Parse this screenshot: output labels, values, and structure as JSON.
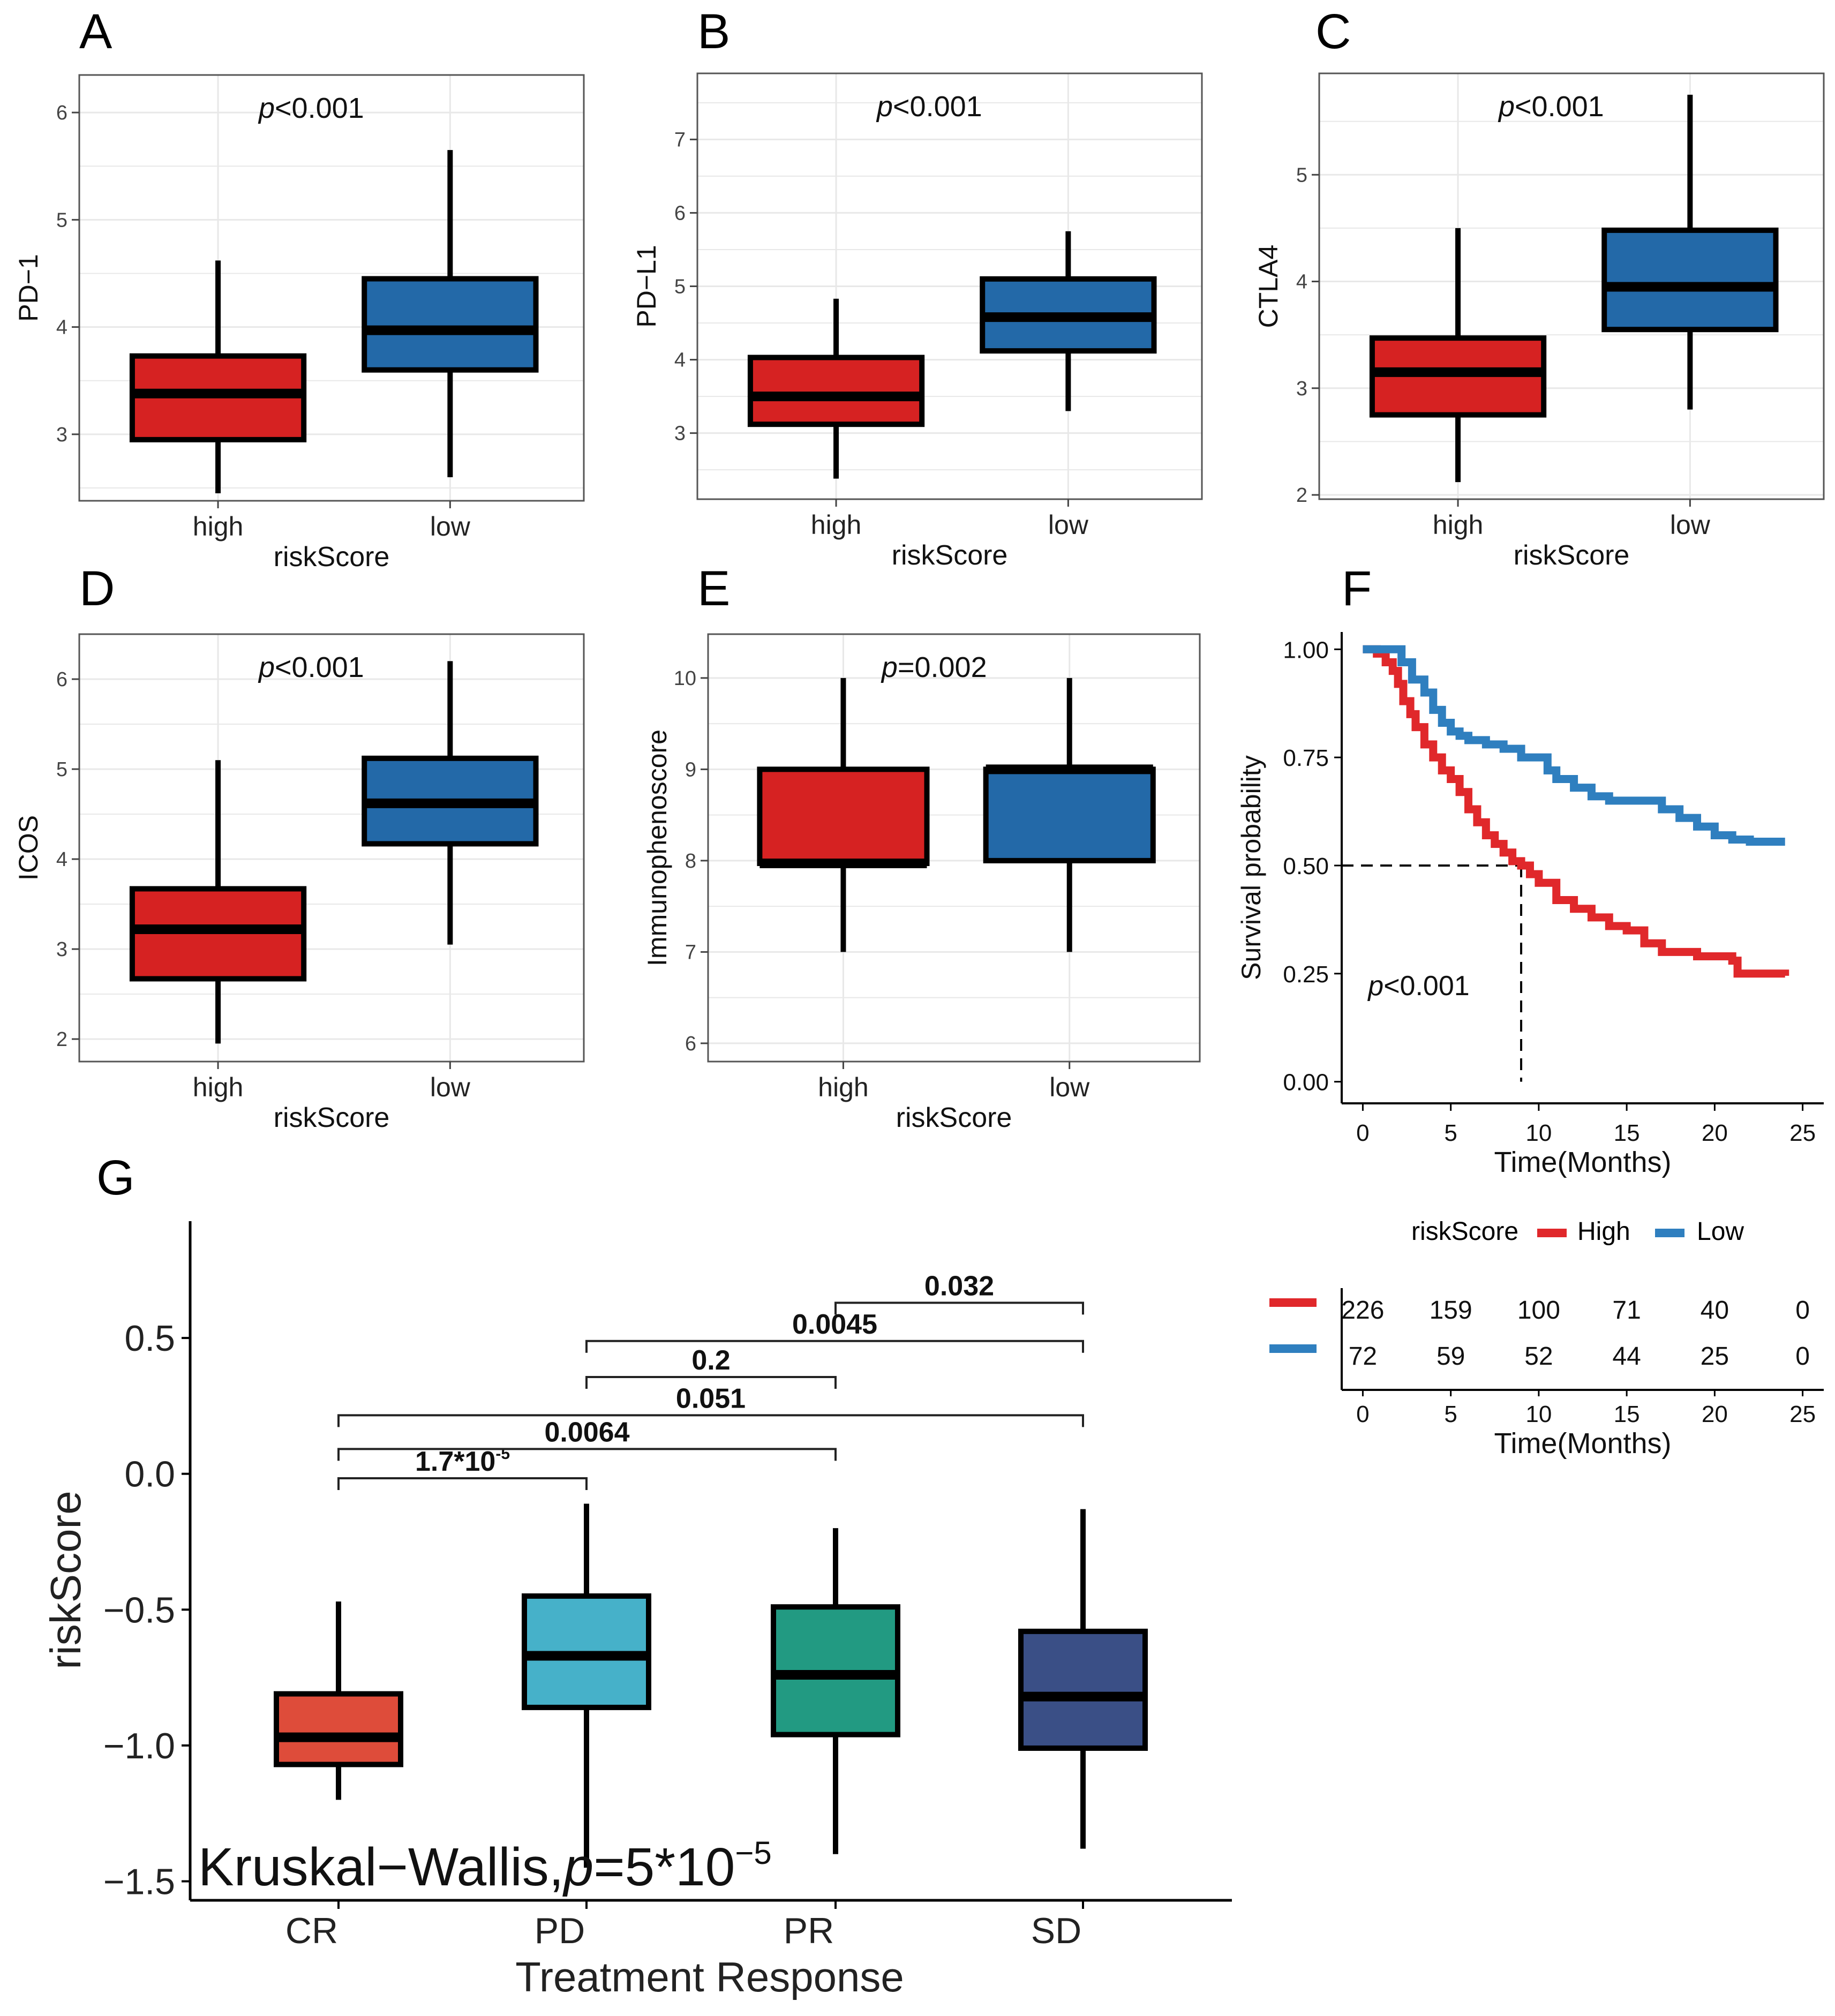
{
  "figure": {
    "panel_labels": [
      "A",
      "B",
      "C",
      "D",
      "E",
      "F",
      "G"
    ]
  },
  "colors": {
    "high": "#d62222",
    "low": "#2369a8",
    "km_high": "#e0282b",
    "km_low": "#2f7fbf",
    "CR": "#de4c3a",
    "PD": "#46b1c9",
    "PR": "#229a82",
    "SD": "#3a4f86"
  },
  "chart_data": [
    {
      "panel": "A",
      "type": "box",
      "title": "",
      "xlabel": "riskScore",
      "ylabel": "PD−1",
      "pvalue": {
        "prefix": "p",
        "text": "<0.001"
      },
      "ylim": [
        2.38,
        6.35
      ],
      "yticks": [
        3,
        4,
        5,
        6
      ],
      "categories": [
        "high",
        "low"
      ],
      "boxes": [
        {
          "group": "high",
          "min": 2.45,
          "q1": 2.95,
          "median": 3.38,
          "q3": 3.73,
          "max": 4.62
        },
        {
          "group": "low",
          "min": 2.6,
          "q1": 3.6,
          "median": 3.97,
          "q3": 4.45,
          "max": 5.65
        }
      ]
    },
    {
      "panel": "B",
      "type": "box",
      "title": "",
      "xlabel": "riskScore",
      "ylabel": "PD−L1",
      "pvalue": {
        "prefix": "p",
        "text": "<0.001"
      },
      "ylim": [
        2.1,
        7.9
      ],
      "yticks": [
        3,
        4,
        5,
        6,
        7
      ],
      "categories": [
        "high",
        "low"
      ],
      "boxes": [
        {
          "group": "high",
          "min": 2.38,
          "q1": 3.12,
          "median": 3.5,
          "q3": 4.03,
          "max": 4.83
        },
        {
          "group": "low",
          "min": 3.3,
          "q1": 4.12,
          "median": 4.58,
          "q3": 5.1,
          "max": 5.75
        }
      ]
    },
    {
      "panel": "C",
      "type": "box",
      "title": "",
      "xlabel": "riskScore",
      "ylabel": "CTLA4",
      "pvalue": {
        "prefix": "p",
        "text": "<0.001"
      },
      "ylim": [
        1.96,
        5.95
      ],
      "yticks": [
        2,
        3,
        4,
        5
      ],
      "categories": [
        "high",
        "low"
      ],
      "boxes": [
        {
          "group": "high",
          "min": 2.12,
          "q1": 2.75,
          "median": 3.15,
          "q3": 3.47,
          "max": 4.5
        },
        {
          "group": "low",
          "min": 2.8,
          "q1": 3.55,
          "median": 3.95,
          "q3": 4.48,
          "max": 5.75
        }
      ]
    },
    {
      "panel": "D",
      "type": "box",
      "title": "",
      "xlabel": "riskScore",
      "ylabel": "ICOS",
      "pvalue": {
        "prefix": "p",
        "text": "<0.001"
      },
      "ylim": [
        1.75,
        6.5
      ],
      "yticks": [
        2,
        3,
        4,
        5,
        6
      ],
      "categories": [
        "high",
        "low"
      ],
      "boxes": [
        {
          "group": "high",
          "min": 1.95,
          "q1": 2.67,
          "median": 3.22,
          "q3": 3.67,
          "max": 5.1
        },
        {
          "group": "low",
          "min": 3.05,
          "q1": 4.17,
          "median": 4.62,
          "q3": 5.12,
          "max": 6.2
        }
      ]
    },
    {
      "panel": "E",
      "type": "box",
      "title": "",
      "xlabel": "riskScore",
      "ylabel": "Immunophenoscore",
      "pvalue": {
        "prefix": "p",
        "text": "=0.002"
      },
      "ylim": [
        5.8,
        10.48
      ],
      "yticks": [
        6,
        7,
        8,
        9,
        10
      ],
      "categories": [
        "high",
        "low"
      ],
      "boxes": [
        {
          "group": "high",
          "min": 7.0,
          "q1": 7.97,
          "median": 7.97,
          "q3": 9.0,
          "max": 10.0
        },
        {
          "group": "low",
          "min": 7.0,
          "q1": 8.0,
          "median": 9.0,
          "q3": 9.0,
          "max": 10.0
        }
      ]
    },
    {
      "panel": "F",
      "type": "line",
      "title": "",
      "xlabel": "Time(Months)",
      "ylabel": "Survival probability",
      "pvalue": {
        "prefix": "p",
        "text": "<0.001"
      },
      "xlim": [
        -1.2,
        26.2
      ],
      "ylim": [
        -0.05,
        1.04
      ],
      "xticks": [
        0,
        5,
        10,
        15,
        20,
        25
      ],
      "yticks": [
        0.0,
        0.25,
        0.5,
        0.75,
        1.0
      ],
      "ytick_labels": [
        "0.00",
        "0.25",
        "0.50",
        "0.75",
        "1.00"
      ],
      "median_line": {
        "x": 9.0,
        "y": 0.5
      },
      "legend": {
        "title": "riskScore",
        "entries": [
          "High",
          "Low"
        ],
        "position": "top"
      },
      "series": [
        {
          "name": "High",
          "x": [
            0,
            0.8,
            1.3,
            1.7,
            2.0,
            2.3,
            2.7,
            3.0,
            3.5,
            4.0,
            4.5,
            5.0,
            5.5,
            6.0,
            6.5,
            7.0,
            7.5,
            8.0,
            8.5,
            9.0,
            9.5,
            10.0,
            11.0,
            12.0,
            13.0,
            14.0,
            15.0,
            16.0,
            17.0,
            18.0,
            19.0,
            20.0,
            21.0,
            21.3,
            22.0,
            23.0,
            24.0
          ],
          "y": [
            1.0,
            0.99,
            0.97,
            0.95,
            0.92,
            0.88,
            0.85,
            0.82,
            0.78,
            0.75,
            0.72,
            0.7,
            0.67,
            0.63,
            0.6,
            0.57,
            0.55,
            0.53,
            0.51,
            0.5,
            0.48,
            0.46,
            0.42,
            0.4,
            0.38,
            0.36,
            0.35,
            0.32,
            0.3,
            0.3,
            0.29,
            0.29,
            0.28,
            0.25,
            0.25,
            0.25,
            0.245
          ]
        },
        {
          "name": "Low",
          "x": [
            0,
            1.5,
            2.2,
            2.8,
            3.5,
            4.0,
            4.5,
            5.0,
            5.5,
            6.0,
            7.0,
            8.0,
            9.0,
            10.0,
            10.5,
            11.0,
            12.0,
            13.0,
            14.0,
            15.0,
            16.0,
            17.0,
            18.0,
            19.0,
            20.0,
            21.0,
            22.0,
            23.0,
            24.0
          ],
          "y": [
            1.0,
            1.0,
            0.97,
            0.93,
            0.9,
            0.86,
            0.83,
            0.81,
            0.8,
            0.79,
            0.78,
            0.77,
            0.75,
            0.75,
            0.72,
            0.7,
            0.68,
            0.66,
            0.65,
            0.65,
            0.65,
            0.63,
            0.61,
            0.59,
            0.57,
            0.56,
            0.555,
            0.555,
            0.555
          ]
        }
      ]
    },
    {
      "panel": "F-risk-table",
      "type": "table",
      "title": "",
      "xlabel": "Time(Months)",
      "xticks": [
        0,
        5,
        10,
        15,
        20,
        25
      ],
      "rows": [
        {
          "name": "High",
          "values": [
            226,
            159,
            100,
            71,
            40,
            0
          ]
        },
        {
          "name": "Low",
          "values": [
            72,
            59,
            52,
            44,
            25,
            0
          ]
        }
      ]
    },
    {
      "panel": "G",
      "type": "box",
      "title": "",
      "xlabel": "Treatment Response",
      "ylabel": "riskScore",
      "ylim": [
        -1.57,
        0.93
      ],
      "yticks": [
        -1.5,
        -1.0,
        -0.5,
        0.0,
        0.5
      ],
      "ytick_labels": [
        "−1.5",
        "−1.0",
        "−0.5",
        "0.0",
        "0.5"
      ],
      "categories": [
        "CR",
        "PD",
        "PR",
        "SD"
      ],
      "annotation": {
        "prefix": "Kruskal−Wallis,",
        "p": "p",
        "rest": "=5*10",
        "exp": "−5"
      },
      "boxes": [
        {
          "group": "CR",
          "min": -1.2,
          "q1": -1.07,
          "median": -0.97,
          "q3": -0.81,
          "max": -0.47
        },
        {
          "group": "PD",
          "min": -1.45,
          "q1": -0.86,
          "median": -0.67,
          "q3": -0.45,
          "max": -0.11
        },
        {
          "group": "PR",
          "min": -1.4,
          "q1": -0.96,
          "median": -0.74,
          "q3": -0.49,
          "max": -0.2
        },
        {
          "group": "SD",
          "min": -1.38,
          "q1": -1.01,
          "median": -0.82,
          "q3": -0.58,
          "max": -0.13
        }
      ],
      "comparisons": [
        {
          "a": "CR",
          "b": "PD",
          "base": "1.7*10",
          "exp": "-5",
          "level": 0.0
        },
        {
          "a": "CR",
          "b": "PR",
          "base": "0.0064",
          "exp": "",
          "level": 0.13
        },
        {
          "a": "CR",
          "b": "SD",
          "base": "0.051",
          "exp": "",
          "level": 0.28
        },
        {
          "a": "PD",
          "b": "PR",
          "base": "0.2",
          "exp": "",
          "level": 0.45
        },
        {
          "a": "PD",
          "b": "SD",
          "base": "0.0045",
          "exp": "",
          "level": 0.61
        },
        {
          "a": "PR",
          "b": "SD",
          "base": "0.032",
          "exp": "",
          "level": 0.78
        }
      ]
    }
  ]
}
